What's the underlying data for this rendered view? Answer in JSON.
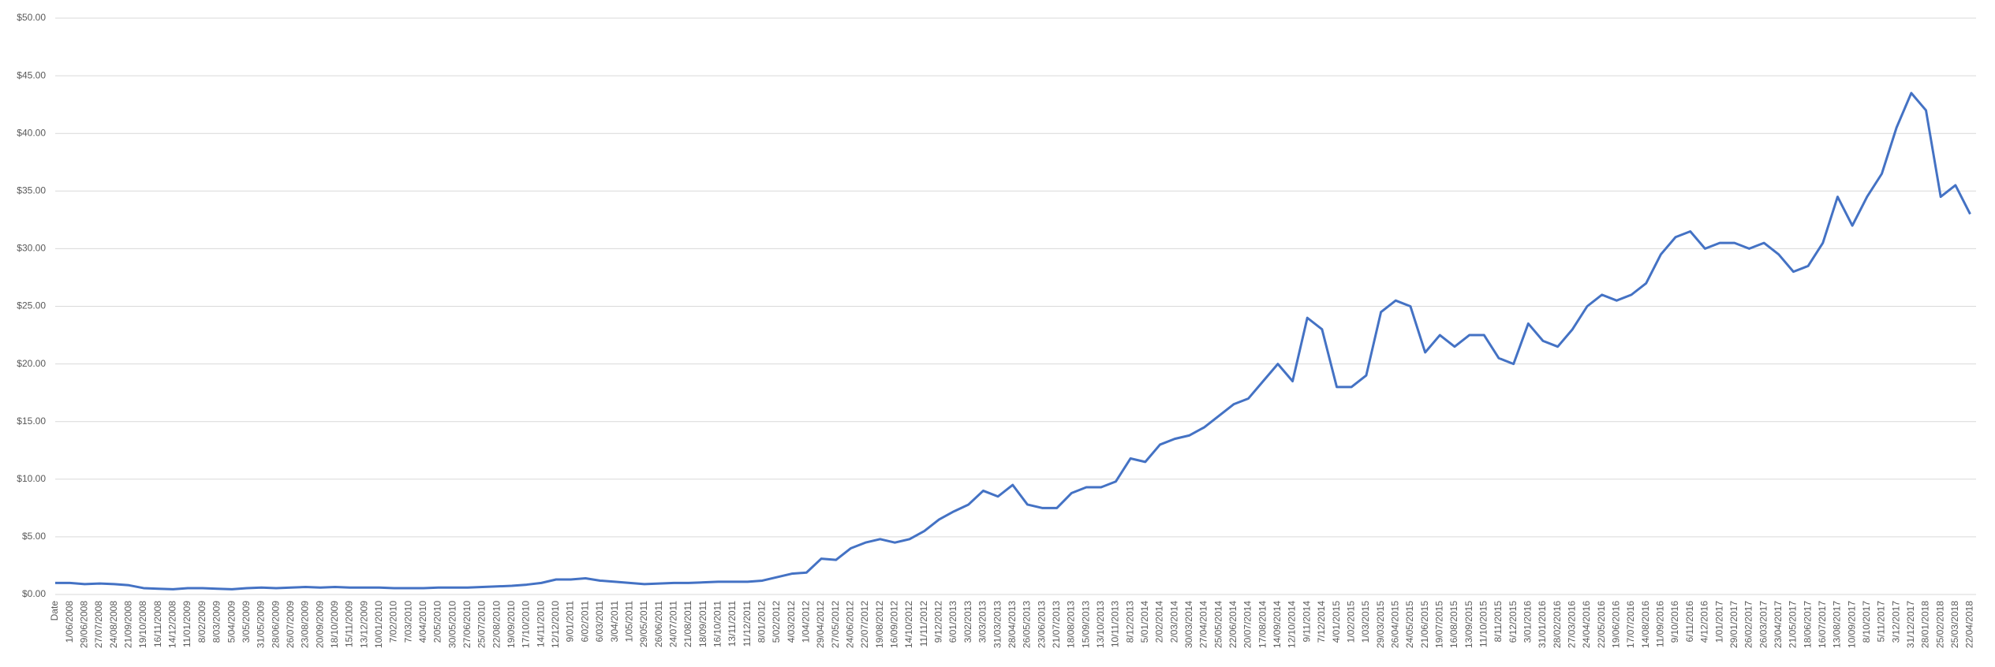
{
  "chart_data": {
    "type": "line",
    "categories": [
      "Date",
      "1/06/2008",
      "29/06/2008",
      "27/07/2008",
      "24/08/2008",
      "21/09/2008",
      "19/10/2008",
      "16/11/2008",
      "14/12/2008",
      "11/01/2009",
      "8/02/2009",
      "8/03/2009",
      "5/04/2009",
      "3/05/2009",
      "31/05/2009",
      "28/06/2009",
      "26/07/2009",
      "23/08/2009",
      "20/09/2009",
      "18/10/2009",
      "15/11/2009",
      "13/12/2009",
      "10/01/2010",
      "7/02/2010",
      "7/03/2010",
      "4/04/2010",
      "2/05/2010",
      "30/05/2010",
      "27/06/2010",
      "25/07/2010",
      "22/08/2010",
      "19/09/2010",
      "17/10/2010",
      "14/11/2010",
      "12/12/2010",
      "9/01/2011",
      "6/02/2011",
      "6/03/2011",
      "3/04/2011",
      "1/05/2011",
      "29/05/2011",
      "26/06/2011",
      "24/07/2011",
      "21/08/2011",
      "18/09/2011",
      "16/10/2011",
      "13/11/2011",
      "11/12/2011",
      "8/01/2012",
      "5/02/2012",
      "4/03/2012",
      "1/04/2012",
      "29/04/2012",
      "27/05/2012",
      "24/06/2012",
      "22/07/2012",
      "19/08/2012",
      "16/09/2012",
      "14/10/2012",
      "11/11/2012",
      "9/12/2012",
      "6/01/2013",
      "3/02/2013",
      "3/03/2013",
      "31/03/2013",
      "28/04/2013",
      "26/05/2013",
      "23/06/2013",
      "21/07/2013",
      "18/08/2013",
      "15/09/2013",
      "13/10/2013",
      "10/11/2013",
      "8/12/2013",
      "5/01/2014",
      "2/02/2014",
      "2/03/2014",
      "30/03/2014",
      "27/04/2014",
      "25/05/2014",
      "22/06/2014",
      "20/07/2014",
      "17/08/2014",
      "14/09/2014",
      "12/10/2014",
      "9/11/2014",
      "7/12/2014",
      "4/01/2015",
      "1/02/2015",
      "1/03/2015",
      "29/03/2015",
      "26/04/2015",
      "24/05/2015",
      "21/06/2015",
      "19/07/2015",
      "16/08/2015",
      "13/09/2015",
      "11/10/2015",
      "8/11/2015",
      "6/12/2015",
      "3/01/2016",
      "31/01/2016",
      "28/02/2016",
      "27/03/2016",
      "24/04/2016",
      "22/05/2016",
      "19/06/2016",
      "17/07/2016",
      "14/08/2016",
      "11/09/2016",
      "9/10/2016",
      "6/11/2016",
      "4/12/2016",
      "1/01/2017",
      "29/01/2017",
      "26/02/2017",
      "26/03/2017",
      "23/04/2017",
      "21/05/2017",
      "18/06/2017",
      "16/07/2017",
      "13/08/2017",
      "10/09/2017",
      "8/10/2017",
      "5/11/2017",
      "3/12/2017",
      "31/12/2017",
      "28/01/2018",
      "25/02/2018",
      "25/03/2018",
      "22/04/2018"
    ],
    "values": [
      1.0,
      1.0,
      0.9,
      0.95,
      0.9,
      0.8,
      0.55,
      0.5,
      0.45,
      0.55,
      0.55,
      0.5,
      0.45,
      0.55,
      0.6,
      0.55,
      0.6,
      0.65,
      0.6,
      0.65,
      0.6,
      0.6,
      0.6,
      0.55,
      0.55,
      0.55,
      0.6,
      0.6,
      0.6,
      0.65,
      0.7,
      0.75,
      0.85,
      1.0,
      1.3,
      1.3,
      1.4,
      1.2,
      1.1,
      1.0,
      0.9,
      0.95,
      1.0,
      1.0,
      1.05,
      1.1,
      1.1,
      1.1,
      1.2,
      1.5,
      1.8,
      1.9,
      3.1,
      3.0,
      4.0,
      4.5,
      4.8,
      4.5,
      4.8,
      5.5,
      6.5,
      7.2,
      7.8,
      9.0,
      8.5,
      9.5,
      7.8,
      7.5,
      7.5,
      8.8,
      9.3,
      9.3,
      9.8,
      11.8,
      11.5,
      13.0,
      13.5,
      13.8,
      14.5,
      15.5,
      16.5,
      17.0,
      18.5,
      20.0,
      18.5,
      24.0,
      23.0,
      18.0,
      18.0,
      19.0,
      24.5,
      25.5,
      25.0,
      21.0,
      22.5,
      21.5,
      22.5,
      22.5,
      20.5,
      20.0,
      23.5,
      22.0,
      21.5,
      23.0,
      25.0,
      26.0,
      25.5,
      26.0,
      27.0,
      29.5,
      31.0,
      31.5,
      30.0,
      30.5,
      30.5,
      30.0,
      30.5,
      29.5,
      28.0,
      28.5,
      30.5,
      34.5,
      32.0,
      34.5,
      36.5,
      40.5,
      43.5,
      42.0,
      34.5,
      35.5,
      33.0
    ],
    "color": "#4472c4",
    "ylim": [
      0,
      50
    ],
    "yticks": [
      {
        "value": 0,
        "label": "$0.00"
      },
      {
        "value": 5,
        "label": "$5.00"
      },
      {
        "value": 10,
        "label": "$10.00"
      },
      {
        "value": 15,
        "label": "$15.00"
      },
      {
        "value": 20,
        "label": "$20.00"
      },
      {
        "value": 25,
        "label": "$25.00"
      },
      {
        "value": 30,
        "label": "$30.00"
      },
      {
        "value": 35,
        "label": "$35.00"
      },
      {
        "value": 40,
        "label": "$40.00"
      },
      {
        "value": 45,
        "label": "$45.00"
      },
      {
        "value": 50,
        "label": "$50.00"
      }
    ],
    "grid": true
  }
}
